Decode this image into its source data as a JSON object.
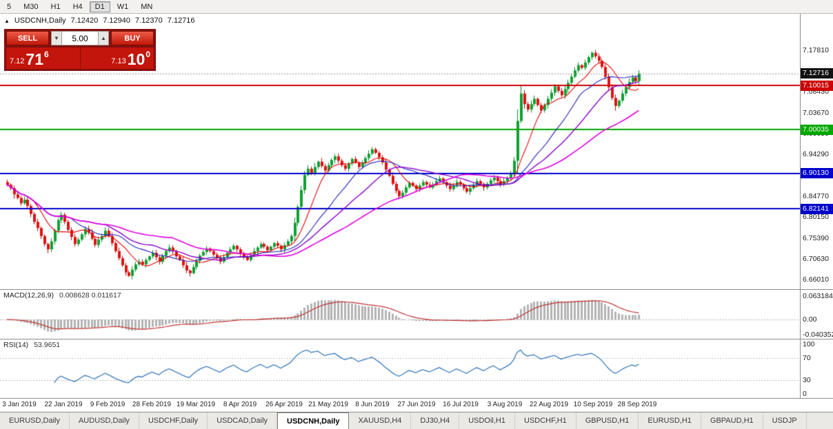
{
  "toolbar": {
    "timeframes": [
      "5",
      "M30",
      "H1",
      "H4",
      "D1",
      "W1",
      "MN"
    ],
    "active": "D1"
  },
  "symbol_header": {
    "arrow": "▲",
    "title": "USDCNH,Daily",
    "open": "7.12420",
    "high": "7.12940",
    "low": "7.12370",
    "close": "7.12716"
  },
  "trade_panel": {
    "sell_label": "SELL",
    "buy_label": "BUY",
    "volume": "5.00",
    "down_glyph": "▼",
    "up_glyph": "▲",
    "sell_price": {
      "small": "7.12",
      "big": "71",
      "sup": "6"
    },
    "buy_price": {
      "small": "7.13",
      "big": "10",
      "sup": "0"
    }
  },
  "chart_data": {
    "type": "candlestick",
    "symbol": "USDCNH",
    "timeframe": "Daily",
    "y_range": [
      6.6399,
      7.2621
    ],
    "y_tick_labels": [
      "7.17810",
      "7.13190",
      "7.08430",
      "7.03670",
      "6.99050",
      "6.94290",
      "6.89530",
      "6.84770",
      "6.80150",
      "6.75390",
      "6.70630",
      "6.66010"
    ],
    "x_tick_labels": [
      "3 Jan 2019",
      "22 Jan 2019",
      "9 Feb 2019",
      "28 Feb 2019",
      "19 Mar 2019",
      "8 Apr 2019",
      "26 Apr 2019",
      "21 May 2019",
      "8 Jun 2019",
      "27 Jun 2019",
      "16 Jul 2019",
      "3 Aug 2019",
      "22 Aug 2019",
      "10 Sep 2019",
      "28 Sep 2019"
    ],
    "levels": [
      {
        "price": 7.10015,
        "label": "7.10015",
        "color": "#cc0000"
      },
      {
        "price": 7.00035,
        "label": "7.00035",
        "color": "#00a800"
      },
      {
        "price": 6.9013,
        "label": "6.90130",
        "color": "#0000cc"
      },
      {
        "price": 6.82141,
        "label": "6.82141",
        "color": "#0000cc"
      }
    ],
    "bid": {
      "price": 7.12716,
      "label": "7.12716",
      "line_color": "#999999",
      "badge_bg": "#111111"
    },
    "candle_colors": {
      "up": "#0fa133",
      "down": "#e01212",
      "up_wick": "#078a29",
      "down_wick": "#bf0d0d"
    },
    "moving_averages": [
      {
        "period": 9,
        "color": "#e60000",
        "width": 1.1
      },
      {
        "period": 20,
        "color": "#2020bb",
        "width": 1.1
      },
      {
        "period": 30,
        "color": "#8a00c8",
        "width": 1.4
      },
      {
        "period": 50,
        "color": "#e000e0",
        "width": 1.6
      }
    ],
    "closes": [
      6.876,
      6.868,
      6.854,
      6.846,
      6.834,
      6.842,
      6.828,
      6.81,
      6.792,
      6.778,
      6.76,
      6.742,
      6.73,
      6.748,
      6.772,
      6.796,
      6.808,
      6.792,
      6.774,
      6.758,
      6.742,
      6.752,
      6.764,
      6.776,
      6.768,
      6.754,
      6.74,
      6.752,
      6.76,
      6.772,
      6.76,
      6.744,
      6.726,
      6.71,
      6.694,
      6.678,
      6.67,
      6.684,
      6.696,
      6.702,
      6.696,
      6.706,
      6.714,
      6.722,
      6.712,
      6.702,
      6.716,
      6.726,
      6.734,
      6.726,
      6.714,
      6.706,
      6.694,
      6.682,
      6.676,
      6.69,
      6.704,
      6.716,
      6.724,
      6.732,
      6.726,
      6.718,
      6.71,
      6.702,
      6.712,
      6.722,
      6.73,
      6.738,
      6.73,
      6.72,
      6.712,
      6.706,
      6.716,
      6.726,
      6.734,
      6.742,
      6.736,
      6.728,
      6.736,
      6.744,
      6.738,
      6.73,
      6.739,
      6.748,
      6.76,
      6.79,
      6.826,
      6.864,
      6.898,
      6.912,
      6.902,
      6.916,
      6.928,
      6.918,
      6.908,
      6.92,
      6.932,
      6.94,
      6.93,
      6.92,
      6.912,
      6.924,
      6.934,
      6.926,
      6.916,
      6.926,
      6.936,
      6.946,
      6.956,
      6.948,
      6.938,
      6.926,
      6.91,
      6.896,
      6.878,
      6.862,
      6.85,
      6.858,
      6.87,
      6.88,
      6.874,
      6.866,
      6.874,
      6.882,
      6.876,
      6.87,
      6.876,
      6.884,
      6.89,
      6.882,
      6.874,
      6.866,
      6.874,
      6.882,
      6.876,
      6.868,
      6.86,
      6.868,
      6.876,
      6.884,
      6.878,
      6.87,
      6.878,
      6.886,
      6.892,
      6.884,
      6.876,
      6.884,
      6.892,
      6.902,
      6.93,
      7.02,
      7.082,
      7.058,
      7.046,
      7.058,
      7.07,
      7.056,
      7.044,
      7.056,
      7.07,
      7.084,
      7.098,
      7.088,
      7.078,
      7.092,
      7.106,
      7.12,
      7.134,
      7.146,
      7.14,
      7.152,
      7.164,
      7.174,
      7.166,
      7.156,
      7.142,
      7.12,
      7.096,
      7.072,
      7.054,
      7.066,
      7.082,
      7.096,
      7.108,
      7.118,
      7.11,
      7.1272
    ]
  },
  "macd": {
    "name": "MACD(12,26,9)",
    "values": "0.008628 0.011617",
    "params": [
      12,
      26,
      9
    ],
    "range": [
      -0.052,
      0.08
    ],
    "ticks": [
      {
        "text": "0.063184",
        "value": 0.063184
      },
      {
        "text": "0.00",
        "value": 0
      },
      {
        "text": "-0.040352",
        "value": -0.040352
      }
    ],
    "histogram_color": "#b3b3b3",
    "signal_color": "#c03030",
    "zero_line_color": "#aaaaaa"
  },
  "rsi": {
    "name": "RSI(14)",
    "value": "53.9651",
    "period": 14,
    "line_color": "#3a7abd",
    "level_lines": [
      70,
      30
    ],
    "ticks": [
      {
        "text": "100",
        "value": 100
      },
      {
        "text": "70",
        "value": 70
      },
      {
        "text": "30",
        "value": 30
      },
      {
        "text": "0",
        "value": 0
      }
    ]
  },
  "tabs": {
    "items": [
      "EURUSD,Daily",
      "AUDUSD,Daily",
      "USDCHF,Daily",
      "USDCAD,Daily",
      "USDCNH,Daily",
      "XAUUSD,H4",
      "DJ30,H4",
      "USDOil,H1",
      "USDCHF,H1",
      "GBPUSD,H1",
      "EURUSD,H1",
      "GBPAUD,H1",
      "USDJP"
    ],
    "active": "USDCNH,Daily"
  }
}
